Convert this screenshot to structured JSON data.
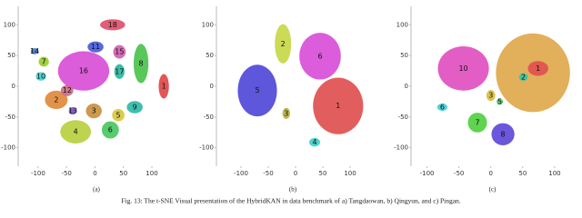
{
  "panels": [
    {
      "sublabel": "(a)",
      "xlim": [
        -135,
        140
      ],
      "ylim": [
        -130,
        130
      ],
      "xticks": [
        -100,
        -50,
        0,
        50,
        100
      ],
      "yticks": [
        -100,
        -50,
        0,
        50,
        100
      ],
      "clusters": [
        {
          "label": "16",
          "color": "#d94fd6",
          "x": -20,
          "y": 25,
          "rx": 45,
          "ry": 32
        },
        {
          "label": "18",
          "color": "#e0506a",
          "x": 31,
          "y": 100,
          "rx": 22,
          "ry": 9
        },
        {
          "label": "11",
          "color": "#4a5be0",
          "x": 1,
          "y": 64,
          "rx": 14,
          "ry": 9
        },
        {
          "label": "15",
          "color": "#d35fb0",
          "x": 43,
          "y": 56,
          "rx": 11,
          "ry": 11
        },
        {
          "label": "14",
          "color": "#3f7fd0",
          "x": -106,
          "y": 57,
          "rx": 7,
          "ry": 5
        },
        {
          "label": "7",
          "color": "#9acd32",
          "x": -90,
          "y": 40,
          "rx": 9,
          "ry": 8
        },
        {
          "label": "17",
          "color": "#2ab8a0",
          "x": 43,
          "y": 24,
          "rx": 9,
          "ry": 12
        },
        {
          "label": "8",
          "color": "#4cc24c",
          "x": 81,
          "y": 37,
          "rx": 13,
          "ry": 32
        },
        {
          "label": "10",
          "color": "#3fd6d0",
          "x": -95,
          "y": 16,
          "rx": 9,
          "ry": 7
        },
        {
          "label": "1",
          "color": "#e04848",
          "x": 121,
          "y": 0,
          "rx": 9,
          "ry": 20
        },
        {
          "label": "2",
          "color": "#e08a3c",
          "x": -68,
          "y": -22,
          "rx": 20,
          "ry": 15
        },
        {
          "label": "12",
          "color": "#c86e8a",
          "x": -49,
          "y": -7,
          "rx": 11,
          "ry": 9
        },
        {
          "label": "9",
          "color": "#30b8a8",
          "x": 70,
          "y": -34,
          "rx": 14,
          "ry": 10
        },
        {
          "label": "13",
          "color": "#7b4fd6",
          "x": -39,
          "y": -40,
          "rx": 7,
          "ry": 6
        },
        {
          "label": "3",
          "color": "#c89040",
          "x": -2,
          "y": -40,
          "rx": 14,
          "ry": 12
        },
        {
          "label": "5",
          "color": "#d8c840",
          "x": 41,
          "y": -47,
          "rx": 11,
          "ry": 10
        },
        {
          "label": "4",
          "color": "#b8d040",
          "x": -34,
          "y": -74,
          "rx": 27,
          "ry": 19
        },
        {
          "label": "6",
          "color": "#48c860",
          "x": 27,
          "y": -71,
          "rx": 15,
          "ry": 14
        }
      ]
    },
    {
      "sublabel": "(b)",
      "xlim": [
        -145,
        135
      ],
      "ylim": [
        -130,
        130
      ],
      "xticks": [
        -100,
        -50,
        0,
        50,
        100
      ],
      "yticks": [
        -100,
        -50,
        0,
        50,
        100
      ],
      "clusters": [
        {
          "label": "2",
          "color": "#c8d848",
          "x": -23,
          "y": 69,
          "rx": 15,
          "ry": 32
        },
        {
          "label": "6",
          "color": "#d84fd8",
          "x": 45,
          "y": 49,
          "rx": 38,
          "ry": 38
        },
        {
          "label": "5",
          "color": "#5048d8",
          "x": -70,
          "y": -7,
          "rx": 36,
          "ry": 42
        },
        {
          "label": "1",
          "color": "#e05050",
          "x": 78,
          "y": -32,
          "rx": 46,
          "ry": 46
        },
        {
          "label": "3",
          "color": "#b8b040",
          "x": -17,
          "y": -44,
          "rx": 7,
          "ry": 9
        },
        {
          "label": "4",
          "color": "#40d0c8",
          "x": 35,
          "y": -91,
          "rx": 10,
          "ry": 7
        }
      ]
    },
    {
      "sublabel": "(c)",
      "xlim": [
        -125,
        130
      ],
      "ylim": [
        -130,
        130
      ],
      "xticks": [
        -100,
        -50,
        0,
        50,
        100
      ],
      "yticks": [
        -100,
        -50,
        0,
        50,
        100
      ],
      "clusters": [
        {
          "label": null,
          "color": "#e0a84c",
          "x": 66,
          "y": 22,
          "rx": 58,
          "ry": 64
        },
        {
          "label": "10",
          "color": "#e050c0",
          "x": -43,
          "y": 29,
          "rx": 40,
          "ry": 36
        },
        {
          "label": "1",
          "color": "#e05050",
          "x": 74,
          "y": 29,
          "rx": 16,
          "ry": 12
        },
        {
          "label": "2",
          "color": "#30c8a8",
          "x": 51,
          "y": 15,
          "rx": 7,
          "ry": 6
        },
        {
          "label": "3",
          "color": "#d8c040",
          "x": 0,
          "y": -15,
          "rx": 7,
          "ry": 9
        },
        {
          "label": "5",
          "color": "#48c860",
          "x": 14,
          "y": -25,
          "rx": 5,
          "ry": 5
        },
        {
          "label": "6",
          "color": "#40d0d8",
          "x": -76,
          "y": -34,
          "rx": 8,
          "ry": 6
        },
        {
          "label": "7",
          "color": "#50d040",
          "x": -21,
          "y": -59,
          "rx": 15,
          "ry": 16
        },
        {
          "label": "8",
          "color": "#6048d8",
          "x": 19,
          "y": -78,
          "rx": 18,
          "ry": 18
        }
      ]
    }
  ],
  "caption": "Fig. 13: The t-SNE Visual presentation of the HybridKAN in data benchmark of a) Tangdaowan, b) Qingyun, and c) Pingan."
}
